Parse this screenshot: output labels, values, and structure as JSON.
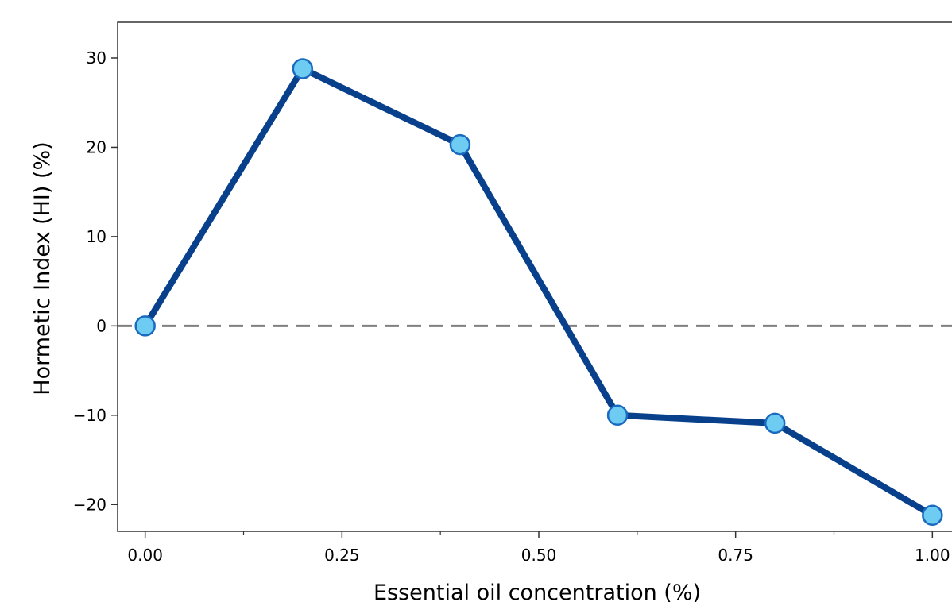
{
  "chart_data": {
    "type": "line",
    "title": "",
    "xlabel": "Essential oil concentration (%)",
    "ylabel": "Hormetic Index (HI) (%)",
    "xlim": [
      -0.035,
      1.035
    ],
    "ylim": [
      -23.0,
      34.0
    ],
    "x_ticks": [
      0.0,
      0.25,
      0.5,
      0.75,
      1.0
    ],
    "x_tick_labels": [
      "0.00",
      "0.25",
      "0.50",
      "0.75",
      "1.00"
    ],
    "x_minor_ticks": [
      0.125,
      0.375,
      0.625,
      0.875
    ],
    "y_ticks": [
      -20,
      -10,
      0,
      10,
      20,
      30
    ],
    "y_tick_labels": [
      "−20",
      "−10",
      "0",
      "10",
      "20",
      "30"
    ],
    "reference_line": {
      "y": 0,
      "style": "dashed",
      "color": "#808080"
    },
    "grid": false,
    "series": [
      {
        "x": [
          0.0,
          0.2,
          0.4,
          0.6,
          0.8,
          1.0
        ],
        "y": [
          0.0,
          28.8,
          20.3,
          -10.0,
          -10.9,
          -21.2
        ],
        "line_color": "#08408c",
        "marker_fill": "#6ecbf2",
        "marker_edge": "#1a6bbf"
      }
    ]
  }
}
